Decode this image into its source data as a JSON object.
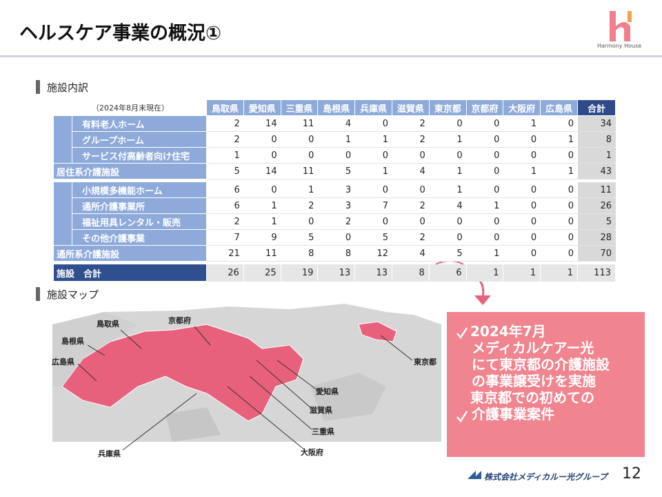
{
  "header": {
    "title": "ヘルスケア事業の概況①",
    "logo": "Harmony House"
  },
  "facility_breakdown": {
    "heading": "施設内訳",
    "as_of": "（2024年8月末現在）",
    "columns": [
      "鳥取県",
      "愛知県",
      "三重県",
      "島根県",
      "兵庫県",
      "滋賀県",
      "東京都",
      "京都府",
      "大阪府",
      "広島県",
      "合計"
    ],
    "groups": [
      {
        "items": [
          {
            "label": "有料老人ホーム",
            "values": [
              2,
              14,
              11,
              4,
              0,
              2,
              0,
              0,
              1,
              0,
              34
            ]
          },
          {
            "label": "グループホーム",
            "values": [
              2,
              0,
              0,
              1,
              1,
              2,
              1,
              0,
              0,
              1,
              8
            ]
          },
          {
            "label": "サービス付高齢者向け住宅",
            "values": [
              1,
              0,
              0,
              0,
              0,
              0,
              0,
              0,
              0,
              0,
              1
            ]
          }
        ],
        "subtotal": {
          "label": "居住系介護施設",
          "values": [
            5,
            14,
            11,
            5,
            1,
            4,
            1,
            0,
            1,
            1,
            43
          ]
        }
      },
      {
        "items": [
          {
            "label": "小規模多機能ホーム",
            "values": [
              6,
              0,
              1,
              3,
              0,
              0,
              1,
              0,
              0,
              0,
              11
            ]
          },
          {
            "label": "通所介護事業所",
            "values": [
              6,
              1,
              2,
              3,
              7,
              2,
              4,
              1,
              0,
              0,
              26
            ]
          },
          {
            "label": "福祉用具レンタル・販売",
            "values": [
              2,
              1,
              0,
              2,
              0,
              0,
              0,
              0,
              0,
              0,
              5
            ]
          },
          {
            "label": "その他介護事業",
            "values": [
              7,
              9,
              5,
              0,
              5,
              2,
              0,
              0,
              0,
              0,
              28
            ]
          }
        ],
        "subtotal": {
          "label": "通所系介護施設",
          "values": [
            21,
            11,
            8,
            8,
            12,
            4,
            5,
            1,
            0,
            0,
            70
          ]
        }
      }
    ],
    "total": {
      "label": "施設　合計",
      "values": [
        26,
        25,
        19,
        13,
        13,
        8,
        6,
        1,
        1,
        1,
        113
      ]
    }
  },
  "map": {
    "heading": "施設マップ",
    "labels": [
      "鳥取県",
      "島根県",
      "広島県",
      "京都府",
      "兵庫県",
      "東京都",
      "愛知県",
      "滋賀県",
      "三重県",
      "大阪府"
    ]
  },
  "callout": {
    "items": [
      {
        "lines": [
          "2024年7月",
          "メディカルケアー光",
          "にて東京都の介護施設",
          "の事業譲受けを実施"
        ]
      },
      {
        "lines": [
          "東京都での初めての",
          "介護事業案件"
        ]
      }
    ]
  },
  "footer": {
    "company": "株式会社メディカルー光グループ",
    "page": "12"
  }
}
